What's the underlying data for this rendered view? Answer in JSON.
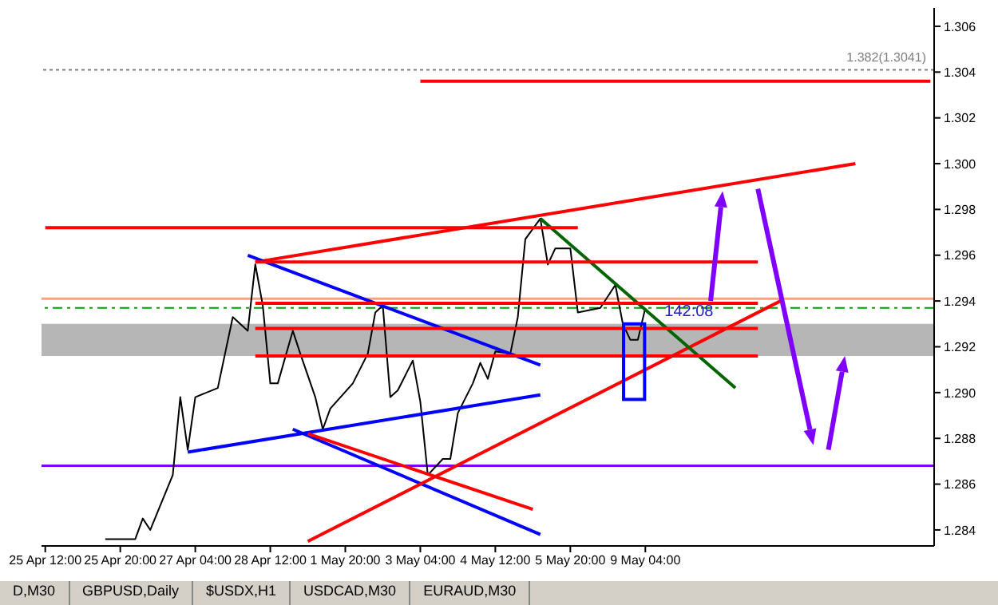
{
  "chart_data": {
    "type": "line",
    "categories": [
      "25 Apr 12:00",
      null,
      null,
      null,
      null,
      null,
      null,
      null,
      null,
      null,
      "25 Apr 20:00",
      null,
      null,
      null,
      null,
      null,
      null,
      null,
      null,
      null,
      "27 Apr 04:00",
      null,
      null,
      null,
      null,
      null,
      null,
      null,
      null,
      null,
      "28 Apr 12:00",
      null,
      null,
      null,
      null,
      null,
      null,
      null,
      null,
      null,
      "1 May 20:00",
      null,
      null,
      null,
      null,
      null,
      null,
      null,
      null,
      null,
      "3 May 04:00",
      null,
      null,
      null,
      null,
      null,
      null,
      null,
      null,
      null,
      "4 May 12:00",
      null,
      null,
      null,
      null,
      null,
      null,
      null,
      null,
      null,
      "5 May 20:00",
      null,
      null,
      null,
      null,
      null,
      null,
      null,
      null,
      null,
      "9 May 04:00",
      null,
      null,
      null,
      null,
      null,
      null,
      null,
      null,
      null,
      null,
      null,
      null,
      null,
      null,
      null,
      null,
      null,
      null,
      null,
      null,
      null,
      null,
      null,
      null,
      null,
      null,
      null,
      null,
      null,
      null,
      null,
      null,
      null,
      null,
      null,
      null,
      null,
      null
    ],
    "ylim": [
      1.2833,
      1.3068
    ],
    "yticks": [
      1.284,
      1.286,
      1.288,
      {
        "value": 1.29,
        "label": "1.290"
      },
      1.292,
      1.294,
      1.296,
      1.298,
      {
        "value": 1.3,
        "label": "1.300"
      },
      1.302,
      1.304,
      1.306
    ],
    "marker": "none",
    "series": [
      {
        "color": "#000000",
        "values": [
          null,
          null,
          null,
          null,
          null,
          null,
          null,
          null,
          1.2836,
          null,
          null,
          null,
          1.2836,
          1.2845,
          1.284,
          null,
          null,
          1.2864,
          1.2898,
          1.2875,
          1.2898,
          null,
          null,
          1.2902,
          null,
          1.2933,
          null,
          1.2927,
          1.2956,
          1.2938,
          1.2904,
          1.2904,
          null,
          1.2927,
          1.2917,
          null,
          1.2898,
          1.2884,
          1.2893,
          null,
          null,
          1.2904,
          null,
          1.2917,
          1.2935,
          1.2938,
          1.2898,
          1.2901,
          null,
          1.2914,
          1.2896,
          1.2864,
          null,
          1.2871,
          1.2871,
          1.2891,
          null,
          1.2904,
          1.2913,
          1.2906,
          1.2918,
          null,
          1.2917,
          1.2933,
          1.2967,
          null,
          1.2976,
          1.2956,
          1.2963,
          null,
          1.2963,
          1.2935,
          null,
          null,
          1.2937,
          null,
          1.2947,
          1.293,
          1.2923,
          1.2923,
          1.2937,
          null,
          null,
          null,
          null,
          null,
          null,
          null,
          null,
          null,
          null,
          null,
          null,
          null,
          null,
          null,
          null,
          null,
          null,
          null,
          null,
          null,
          null,
          null,
          null,
          null,
          null,
          null,
          null,
          null,
          null,
          null,
          null,
          null,
          null,
          null,
          null,
          null,
          null
        ]
      },
      {
        "color": "#ff0000",
        "values": [
          null,
          null,
          null,
          null,
          null,
          null,
          null,
          null,
          null,
          null,
          null,
          null,
          null,
          null,
          null,
          null,
          null,
          null,
          null,
          null,
          null,
          null,
          null,
          null,
          null,
          null,
          null,
          null,
          1.2957,
          null,
          null,
          null,
          null,
          null,
          null,
          null,
          null,
          null,
          null,
          null,
          null,
          null,
          null,
          null,
          null,
          null,
          null,
          null,
          null,
          null,
          null,
          null,
          null,
          null,
          null,
          null,
          null,
          null,
          null,
          null,
          null,
          null,
          null,
          null,
          null,
          null,
          null,
          null,
          null,
          null,
          null,
          null,
          null,
          null,
          null,
          null,
          null,
          null,
          null,
          null,
          null,
          null,
          null,
          null,
          null,
          null,
          null,
          null,
          null,
          null,
          null,
          null,
          null,
          null,
          null,
          null,
          null,
          null,
          null,
          null,
          null,
          null,
          null,
          null,
          null,
          null,
          null,
          null,
          1.3,
          null,
          null,
          null,
          null,
          null,
          null,
          null,
          null,
          null,
          null
        ]
      },
      {
        "color": "#0000ff",
        "values": [
          null,
          null,
          null,
          null,
          null,
          null,
          null,
          null,
          null,
          null,
          null,
          null,
          null,
          null,
          null,
          null,
          null,
          null,
          null,
          null,
          null,
          null,
          null,
          null,
          null,
          null,
          null,
          1.296,
          null,
          null,
          null,
          null,
          null,
          null,
          null,
          null,
          null,
          null,
          null,
          null,
          null,
          null,
          null,
          null,
          null,
          null,
          null,
          null,
          null,
          null,
          null,
          null,
          null,
          null,
          null,
          null,
          null,
          null,
          null,
          null,
          null,
          null,
          null,
          null,
          null,
          null,
          1.2912,
          null,
          null,
          null,
          null,
          null,
          null,
          null,
          null,
          null,
          null,
          null,
          null,
          null,
          null,
          null,
          null,
          null,
          null,
          null,
          null,
          null,
          null,
          null,
          null,
          null,
          null,
          null,
          null,
          null,
          null,
          null,
          null,
          null,
          null,
          null,
          null,
          null,
          null,
          null,
          null,
          null,
          null,
          null,
          null,
          null,
          null,
          null,
          null,
          null,
          null,
          null,
          null
        ]
      },
      {
        "color": "#0000ff",
        "values": [
          null,
          null,
          null,
          null,
          null,
          null,
          null,
          null,
          null,
          null,
          null,
          null,
          null,
          null,
          null,
          null,
          null,
          null,
          null,
          1.2874,
          null,
          null,
          null,
          null,
          null,
          null,
          null,
          null,
          null,
          null,
          null,
          null,
          null,
          null,
          null,
          null,
          null,
          null,
          null,
          null,
          null,
          null,
          null,
          null,
          null,
          null,
          null,
          null,
          null,
          null,
          null,
          null,
          null,
          null,
          null,
          null,
          null,
          null,
          null,
          null,
          null,
          null,
          null,
          null,
          null,
          null,
          1.2899,
          null,
          null,
          null,
          null,
          null,
          null,
          null,
          null,
          null,
          null,
          null,
          null,
          null,
          null,
          null,
          null,
          null,
          null,
          null,
          null,
          null,
          null,
          null,
          null,
          null,
          null,
          null,
          null,
          null,
          null,
          null,
          null,
          null,
          null,
          null,
          null,
          null,
          null,
          null,
          null,
          null,
          null,
          null,
          null,
          null,
          null,
          null,
          null,
          null,
          null,
          null,
          null
        ]
      },
      {
        "color": "#0000ff",
        "values": [
          null,
          null,
          null,
          null,
          null,
          null,
          null,
          null,
          null,
          null,
          null,
          null,
          null,
          null,
          null,
          null,
          null,
          null,
          null,
          null,
          null,
          null,
          null,
          null,
          null,
          null,
          null,
          null,
          null,
          null,
          null,
          null,
          null,
          1.2884,
          null,
          null,
          null,
          null,
          null,
          null,
          null,
          null,
          null,
          null,
          null,
          null,
          null,
          null,
          null,
          null,
          null,
          null,
          null,
          null,
          null,
          null,
          null,
          null,
          null,
          null,
          null,
          null,
          null,
          null,
          null,
          null,
          1.2838,
          null,
          null,
          null,
          null,
          null,
          null,
          null,
          null,
          null,
          null,
          null,
          null,
          null,
          null,
          null,
          null,
          null,
          null,
          null,
          null,
          null,
          null,
          null,
          null,
          null,
          null,
          null,
          null,
          null,
          null,
          null,
          null,
          null,
          null,
          null,
          null,
          null,
          null,
          null,
          null,
          null,
          null,
          null,
          null,
          null,
          null,
          null,
          null,
          null,
          null,
          null,
          null
        ]
      },
      {
        "color": "#ff0000",
        "values": [
          null,
          null,
          null,
          null,
          null,
          null,
          null,
          null,
          null,
          null,
          null,
          null,
          null,
          null,
          null,
          null,
          null,
          null,
          null,
          null,
          null,
          null,
          null,
          null,
          null,
          null,
          null,
          null,
          null,
          null,
          null,
          null,
          null,
          null,
          null,
          1.2882,
          null,
          null,
          null,
          null,
          null,
          null,
          null,
          null,
          null,
          null,
          null,
          null,
          null,
          null,
          null,
          null,
          null,
          null,
          null,
          null,
          null,
          null,
          null,
          null,
          null,
          null,
          null,
          null,
          null,
          1.2849,
          null,
          null,
          null,
          null,
          null,
          null,
          null,
          null,
          null,
          null,
          null,
          null,
          null,
          null,
          null,
          null,
          null,
          null,
          null,
          null,
          null,
          null,
          null,
          null,
          null,
          null,
          null,
          null,
          null,
          null,
          null,
          null,
          null,
          null,
          null,
          null,
          null,
          null,
          null,
          null,
          null,
          null,
          null,
          null,
          null,
          null,
          null,
          null,
          null,
          null,
          null,
          null,
          null
        ]
      },
      {
        "color": "#ff0000",
        "values": [
          null,
          null,
          null,
          null,
          null,
          null,
          null,
          null,
          null,
          null,
          null,
          null,
          null,
          null,
          null,
          null,
          null,
          null,
          null,
          null,
          null,
          null,
          null,
          null,
          null,
          null,
          null,
          null,
          null,
          null,
          null,
          null,
          null,
          null,
          null,
          1.2835,
          null,
          null,
          null,
          null,
          null,
          null,
          null,
          null,
          null,
          null,
          null,
          null,
          null,
          null,
          null,
          null,
          null,
          null,
          null,
          null,
          null,
          null,
          null,
          null,
          null,
          null,
          null,
          null,
          null,
          null,
          null,
          null,
          null,
          null,
          null,
          null,
          null,
          null,
          null,
          null,
          null,
          null,
          null,
          null,
          null,
          null,
          null,
          null,
          null,
          null,
          null,
          null,
          null,
          null,
          null,
          null,
          null,
          null,
          null,
          null,
          null,
          null,
          1.294,
          null,
          null,
          null,
          null,
          null,
          null,
          null,
          null,
          null,
          null,
          null,
          null,
          null,
          null,
          null,
          null,
          null,
          null,
          null,
          null
        ]
      },
      {
        "color": "#006400",
        "values": [
          null,
          null,
          null,
          null,
          null,
          null,
          null,
          null,
          null,
          null,
          null,
          null,
          null,
          null,
          null,
          null,
          null,
          null,
          null,
          null,
          null,
          null,
          null,
          null,
          null,
          null,
          null,
          null,
          null,
          null,
          null,
          null,
          null,
          null,
          null,
          null,
          null,
          null,
          null,
          null,
          null,
          null,
          null,
          null,
          null,
          null,
          null,
          null,
          null,
          null,
          null,
          null,
          null,
          null,
          null,
          null,
          null,
          null,
          null,
          null,
          null,
          null,
          null,
          null,
          null,
          null,
          1.2976,
          null,
          null,
          null,
          null,
          null,
          null,
          null,
          null,
          null,
          null,
          null,
          null,
          null,
          null,
          null,
          null,
          null,
          null,
          null,
          null,
          null,
          null,
          null,
          null,
          null,
          1.2902,
          null,
          null,
          null,
          null,
          null,
          null,
          null,
          null,
          null,
          null,
          null,
          null,
          null,
          null,
          null,
          null,
          null,
          null,
          null,
          null,
          null,
          null,
          null,
          null,
          null,
          null
        ]
      },
      {
        "color": "#ff0000",
        "values": [
          1.2972,
          null,
          null,
          null,
          null,
          null,
          null,
          null,
          null,
          null,
          null,
          null,
          null,
          null,
          null,
          null,
          null,
          null,
          null,
          null,
          null,
          null,
          null,
          null,
          null,
          null,
          null,
          null,
          null,
          null,
          null,
          null,
          null,
          null,
          null,
          null,
          null,
          null,
          null,
          null,
          null,
          null,
          null,
          null,
          null,
          null,
          null,
          null,
          null,
          null,
          null,
          null,
          null,
          null,
          null,
          null,
          null,
          null,
          null,
          null,
          null,
          null,
          null,
          null,
          null,
          null,
          null,
          null,
          null,
          null,
          null,
          1.2972,
          null,
          null,
          null,
          null,
          null,
          null,
          null,
          null,
          null,
          null,
          null,
          null,
          null,
          null,
          null,
          null,
          null,
          null,
          null,
          null,
          null,
          null,
          null,
          null,
          null,
          null,
          null,
          null,
          null,
          null,
          null,
          null,
          null,
          null,
          null,
          null,
          null,
          null,
          null,
          null,
          null,
          null,
          null,
          null,
          null,
          null,
          null
        ]
      },
      {
        "color": "#ff0000",
        "values": [
          null,
          null,
          null,
          null,
          null,
          null,
          null,
          null,
          null,
          null,
          null,
          null,
          null,
          null,
          null,
          null,
          null,
          null,
          null,
          null,
          null,
          null,
          null,
          null,
          null,
          null,
          null,
          null,
          1.2957,
          null,
          null,
          null,
          null,
          null,
          null,
          null,
          null,
          null,
          null,
          null,
          null,
          null,
          null,
          null,
          null,
          null,
          null,
          null,
          null,
          null,
          null,
          null,
          null,
          null,
          null,
          null,
          null,
          null,
          null,
          null,
          null,
          null,
          null,
          null,
          null,
          null,
          null,
          null,
          null,
          null,
          null,
          null,
          null,
          null,
          null,
          null,
          null,
          null,
          null,
          null,
          null,
          null,
          null,
          null,
          null,
          null,
          null,
          null,
          null,
          null,
          null,
          null,
          null,
          null,
          null,
          1.2957,
          null,
          null,
          null,
          null,
          null,
          null,
          null,
          null,
          null,
          null,
          null,
          null,
          null,
          null,
          null,
          null,
          null,
          null,
          null,
          null,
          null,
          null,
          null
        ]
      },
      {
        "color": "#ff0000",
        "values": [
          null,
          null,
          null,
          null,
          null,
          null,
          null,
          null,
          null,
          null,
          null,
          null,
          null,
          null,
          null,
          null,
          null,
          null,
          null,
          null,
          null,
          null,
          null,
          null,
          null,
          null,
          null,
          null,
          1.2939,
          null,
          null,
          null,
          null,
          null,
          null,
          null,
          null,
          null,
          null,
          null,
          null,
          null,
          null,
          null,
          null,
          null,
          null,
          null,
          null,
          null,
          null,
          null,
          null,
          null,
          null,
          null,
          null,
          null,
          null,
          null,
          null,
          null,
          null,
          null,
          null,
          null,
          null,
          null,
          null,
          null,
          null,
          null,
          null,
          null,
          null,
          null,
          null,
          null,
          null,
          null,
          null,
          null,
          null,
          null,
          null,
          null,
          null,
          null,
          null,
          null,
          null,
          null,
          null,
          null,
          null,
          1.2939,
          null,
          null,
          null,
          null,
          null,
          null,
          null,
          null,
          null,
          null,
          null,
          null,
          null,
          null,
          null,
          null,
          null,
          null,
          null,
          null,
          null,
          null,
          null
        ]
      },
      {
        "color": "#ff0000",
        "values": [
          null,
          null,
          null,
          null,
          null,
          null,
          null,
          null,
          null,
          null,
          null,
          null,
          null,
          null,
          null,
          null,
          null,
          null,
          null,
          null,
          null,
          null,
          null,
          null,
          null,
          null,
          null,
          null,
          1.2928,
          null,
          null,
          null,
          null,
          null,
          null,
          null,
          null,
          null,
          null,
          null,
          null,
          null,
          null,
          null,
          null,
          null,
          null,
          null,
          null,
          null,
          null,
          null,
          null,
          null,
          null,
          null,
          null,
          null,
          null,
          null,
          null,
          null,
          null,
          null,
          null,
          null,
          null,
          null,
          null,
          null,
          null,
          null,
          null,
          null,
          null,
          null,
          null,
          null,
          null,
          null,
          null,
          null,
          null,
          null,
          null,
          null,
          null,
          null,
          null,
          null,
          null,
          null,
          null,
          null,
          null,
          1.2928,
          null,
          null,
          null,
          null,
          null,
          null,
          null,
          null,
          null,
          null,
          null,
          null,
          null,
          null,
          null,
          null,
          null,
          null,
          null,
          null,
          null,
          null,
          null
        ]
      },
      {
        "color": "#ff0000",
        "values": [
          null,
          null,
          null,
          null,
          null,
          null,
          null,
          null,
          null,
          null,
          null,
          null,
          null,
          null,
          null,
          null,
          null,
          null,
          null,
          null,
          null,
          null,
          null,
          null,
          null,
          null,
          null,
          null,
          1.2916,
          null,
          null,
          null,
          null,
          null,
          null,
          null,
          null,
          null,
          null,
          null,
          null,
          null,
          null,
          null,
          null,
          null,
          null,
          null,
          null,
          null,
          null,
          null,
          null,
          null,
          null,
          null,
          null,
          null,
          null,
          null,
          null,
          null,
          null,
          null,
          null,
          null,
          null,
          null,
          null,
          null,
          null,
          null,
          null,
          null,
          null,
          null,
          null,
          null,
          null,
          null,
          null,
          null,
          null,
          null,
          null,
          null,
          null,
          null,
          null,
          null,
          null,
          null,
          null,
          null,
          null,
          1.2916,
          null,
          null,
          null,
          null,
          null,
          null,
          null,
          null,
          null,
          null,
          null,
          null,
          null,
          null,
          null,
          null,
          null,
          null,
          null,
          null,
          null,
          null,
          null
        ]
      },
      {
        "color": "#ff0000",
        "values": [
          null,
          null,
          null,
          null,
          null,
          null,
          null,
          null,
          null,
          null,
          null,
          null,
          null,
          null,
          null,
          null,
          null,
          null,
          null,
          null,
          null,
          null,
          null,
          null,
          null,
          null,
          null,
          null,
          null,
          null,
          null,
          null,
          null,
          null,
          null,
          null,
          null,
          null,
          null,
          null,
          null,
          null,
          null,
          null,
          null,
          null,
          null,
          null,
          null,
          null,
          1.3036,
          null,
          null,
          null,
          null,
          null,
          null,
          null,
          null,
          null,
          null,
          null,
          null,
          null,
          null,
          null,
          null,
          null,
          null,
          null,
          null,
          null,
          null,
          null,
          null,
          null,
          null,
          null,
          null,
          null,
          null,
          null,
          null,
          null,
          null,
          null,
          null,
          null,
          null,
          null,
          null,
          null,
          null,
          null,
          null,
          null,
          null,
          null,
          null,
          null,
          null,
          null,
          null,
          null,
          null,
          null,
          null,
          null,
          null,
          null,
          null,
          null,
          null,
          null,
          null,
          null,
          null,
          null,
          1.3036
        ]
      }
    ],
    "ref_lines": [
      {
        "axis": "y",
        "value": 1.3041,
        "label": "1.382(1.3041)",
        "color": "#808080",
        "line_style": "dotted"
      },
      {
        "axis": "y",
        "value": 1.2941,
        "color": "#ffa07a",
        "line_style": "solid"
      },
      {
        "axis": "y",
        "value": 1.2937,
        "color": "#00a000",
        "line_style": "dashed"
      },
      {
        "axis": "y",
        "value": 1.2868,
        "color": "#8000ff",
        "line_style": "solid"
      }
    ],
    "bands": [
      {
        "axis": "y",
        "from": 1.2916,
        "to": 1.293,
        "color": "#a9a9a9"
      }
    ],
    "annotations": [
      {
        "text": "142:08",
        "x": "9 May 04:00",
        "y": 1.2937
      },
      "D,M30",
      "GBPUSD,Daily",
      "$USDX,H1",
      "USDCAD,M30",
      "EURAUD,M30"
    ]
  }
}
